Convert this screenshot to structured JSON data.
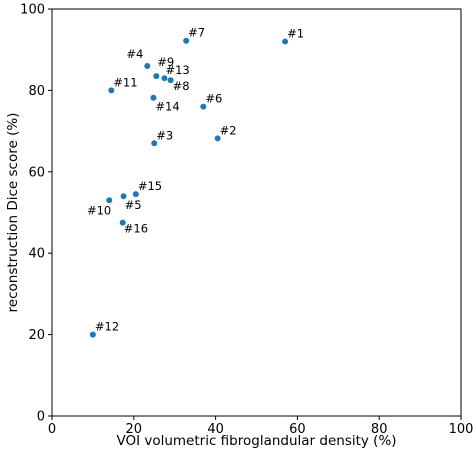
{
  "chart_data": {
    "type": "scatter",
    "title": "",
    "xlabel": "VOI volumetric fibroglandular density (%)",
    "ylabel": "reconstruction Dice score (%)",
    "xlim": [
      0,
      100
    ],
    "ylim": [
      0,
      100
    ],
    "xticks": [
      "0",
      "20",
      "40",
      "60",
      "80",
      "100"
    ],
    "yticks": [
      "0",
      "20",
      "40",
      "60",
      "80",
      "100"
    ],
    "grid": false,
    "marker_color": "#1f77b4",
    "points": [
      {
        "label": "#1",
        "x": 57.0,
        "y": 92.0
      },
      {
        "label": "#2",
        "x": 40.5,
        "y": 68.2
      },
      {
        "label": "#3",
        "x": 25.0,
        "y": 67.0
      },
      {
        "label": "#4",
        "x": 23.3,
        "y": 86.0
      },
      {
        "label": "#5",
        "x": 17.5,
        "y": 54.0
      },
      {
        "label": "#6",
        "x": 37.0,
        "y": 76.0
      },
      {
        "label": "#7",
        "x": 32.8,
        "y": 92.2
      },
      {
        "label": "#8",
        "x": 29.0,
        "y": 82.5
      },
      {
        "label": "#9",
        "x": 25.5,
        "y": 83.5
      },
      {
        "label": "#10",
        "x": 14.0,
        "y": 53.0
      },
      {
        "label": "#11",
        "x": 14.5,
        "y": 80.0
      },
      {
        "label": "#12",
        "x": 10.0,
        "y": 20.0
      },
      {
        "label": "#13",
        "x": 27.5,
        "y": 83.0
      },
      {
        "label": "#14",
        "x": 24.8,
        "y": 78.2
      },
      {
        "label": "#15",
        "x": 20.5,
        "y": 54.5
      },
      {
        "label": "#16",
        "x": 17.3,
        "y": 47.5
      }
    ]
  }
}
